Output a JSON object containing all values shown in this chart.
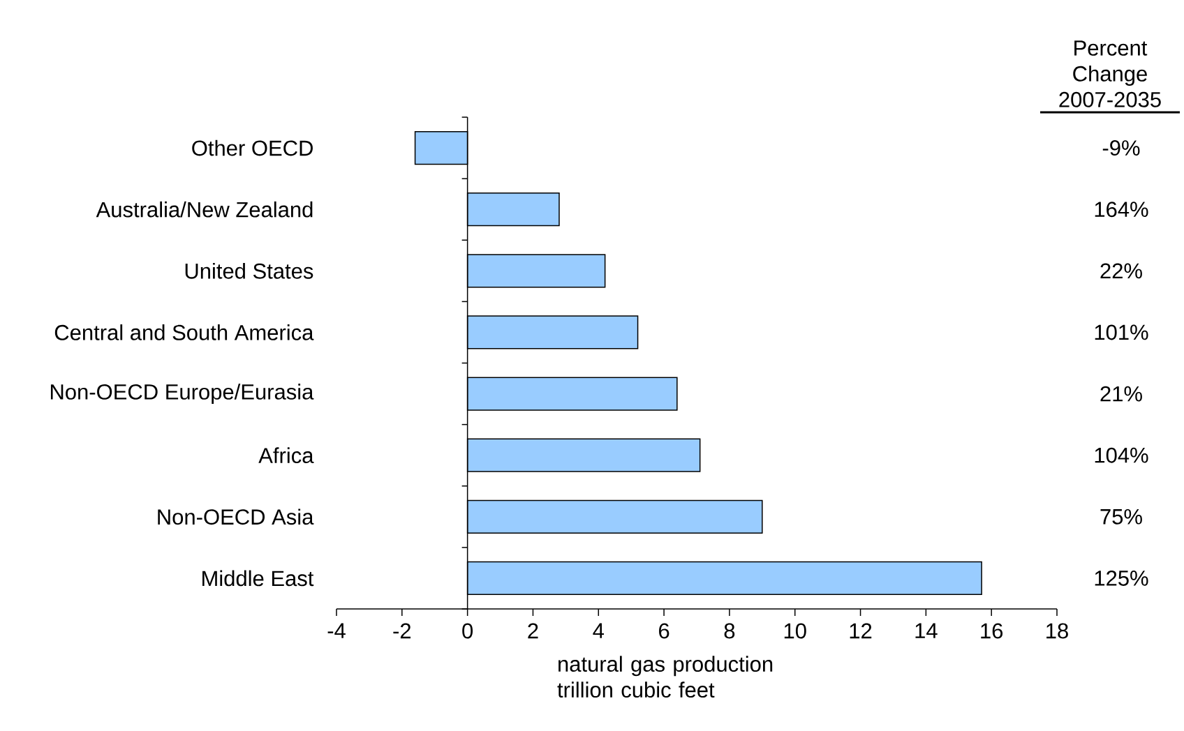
{
  "chart_data": {
    "type": "bar",
    "orientation": "horizontal",
    "xlabel": "natural gas production trillion cubic feet",
    "categories": [
      "Other OECD",
      "Australia/New Zealand",
      "United States",
      "Central and South America",
      "Non-OECD Europe/Eurasia",
      "Africa",
      "Non-OECD Asia",
      "Middle East"
    ],
    "values": [
      -1.6,
      2.8,
      4.2,
      5.2,
      6.4,
      7.1,
      9.0,
      15.7
    ],
    "color": "#99ccff",
    "xlim": [
      -4,
      18
    ],
    "xticks": [
      -4,
      -2,
      0,
      2,
      4,
      6,
      8,
      10,
      12,
      14,
      16,
      18
    ],
    "annotations": [
      "Percent Change 2007-2035",
      "-9%",
      "164%",
      "22%",
      "101%",
      "21%",
      "104%",
      "75%",
      "125%"
    ]
  }
}
